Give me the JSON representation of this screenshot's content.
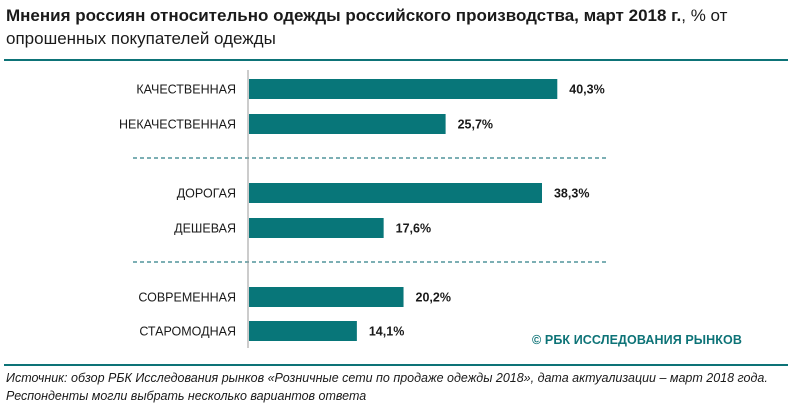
{
  "title_bold": "Мнения россиян относительно одежды российского производства, март 2018 г.",
  "title_rest": ", % от опрошенных покупателей одежды",
  "colors": {
    "accent": "#0d7377",
    "bar": "#087679",
    "axis": "#9a9a9a",
    "divider": "#2f7f86"
  },
  "chart_data": {
    "type": "bar",
    "orientation": "horizontal",
    "categories": [
      "КАЧЕСТВЕННАЯ",
      "НЕКАЧЕСТВЕННАЯ",
      "ДОРОГАЯ",
      "ДЕШЕВАЯ",
      "СОВРЕМЕННАЯ",
      "СТАРОМОДНАЯ"
    ],
    "values": [
      40.3,
      25.7,
      38.3,
      17.6,
      20.2,
      14.1
    ],
    "value_labels": [
      "40,3%",
      "25,7%",
      "38,3%",
      "17,6%",
      "20,2%",
      "14,1%"
    ],
    "groups": [
      [
        0,
        1
      ],
      [
        2,
        3
      ],
      [
        4,
        5
      ]
    ],
    "xlim": [
      0,
      45
    ],
    "grid": false
  },
  "watermark": "© РБК ИССЛЕДОВАНИЯ РЫНКОВ",
  "source_line1": "Источник: обзор РБК Исследования рынков «Розничные сети по продаже одежды 2018», дата актуализации – март 2018 года.",
  "source_line2": "Респонденты могли выбрать несколько вариантов ответа"
}
